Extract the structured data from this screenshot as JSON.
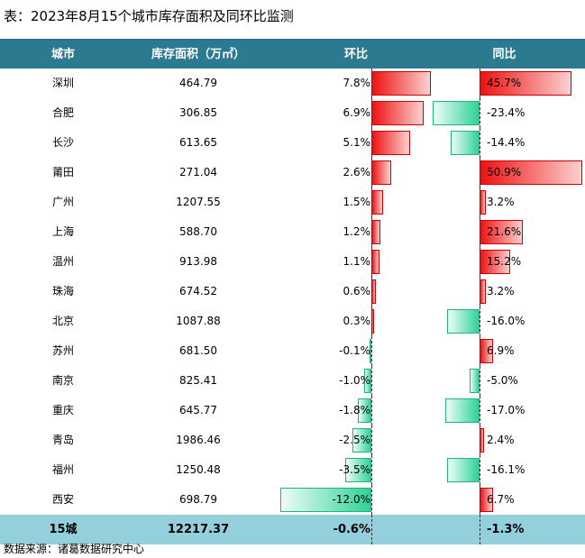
{
  "title": "表：2023年8月15个城市库存面积及同环比监测",
  "source": "数据来源：诸葛数据研究中心",
  "header": {
    "city": "城市",
    "inventory": "库存面积（万㎡）",
    "mom": "环比",
    "yoy": "同比"
  },
  "chart_data": {
    "type": "table",
    "columns": [
      "城市",
      "库存面积（万㎡）",
      "环比",
      "同比"
    ],
    "rows": [
      {
        "city": "深圳",
        "inventory": "464.79",
        "mom": 7.8,
        "mom_label": "7.8%",
        "yoy": 45.7,
        "yoy_label": "45.7%"
      },
      {
        "city": "合肥",
        "inventory": "306.85",
        "mom": 6.9,
        "mom_label": "6.9%",
        "yoy": -23.4,
        "yoy_label": "-23.4%"
      },
      {
        "city": "长沙",
        "inventory": "613.65",
        "mom": 5.1,
        "mom_label": "5.1%",
        "yoy": -14.4,
        "yoy_label": "-14.4%"
      },
      {
        "city": "莆田",
        "inventory": "271.04",
        "mom": 2.6,
        "mom_label": "2.6%",
        "yoy": 50.9,
        "yoy_label": "50.9%"
      },
      {
        "city": "广州",
        "inventory": "1207.55",
        "mom": 1.5,
        "mom_label": "1.5%",
        "yoy": 3.2,
        "yoy_label": "3.2%"
      },
      {
        "city": "上海",
        "inventory": "588.70",
        "mom": 1.2,
        "mom_label": "1.2%",
        "yoy": 21.6,
        "yoy_label": "21.6%"
      },
      {
        "city": "温州",
        "inventory": "913.98",
        "mom": 1.1,
        "mom_label": "1.1%",
        "yoy": 15.2,
        "yoy_label": "15.2%"
      },
      {
        "city": "珠海",
        "inventory": "674.52",
        "mom": 0.6,
        "mom_label": "0.6%",
        "yoy": 3.2,
        "yoy_label": "3.2%"
      },
      {
        "city": "北京",
        "inventory": "1087.88",
        "mom": 0.3,
        "mom_label": "0.3%",
        "yoy": -16.0,
        "yoy_label": "-16.0%"
      },
      {
        "city": "苏州",
        "inventory": "681.50",
        "mom": -0.1,
        "mom_label": "-0.1%",
        "yoy": 6.9,
        "yoy_label": "6.9%"
      },
      {
        "city": "南京",
        "inventory": "825.41",
        "mom": -1.0,
        "mom_label": "-1.0%",
        "yoy": -5.0,
        "yoy_label": "-5.0%"
      },
      {
        "city": "重庆",
        "inventory": "645.77",
        "mom": -1.8,
        "mom_label": "-1.8%",
        "yoy": -17.0,
        "yoy_label": "-17.0%"
      },
      {
        "city": "青岛",
        "inventory": "1986.46",
        "mom": -2.5,
        "mom_label": "-2.5%",
        "yoy": 2.4,
        "yoy_label": "2.4%"
      },
      {
        "city": "福州",
        "inventory": "1250.48",
        "mom": -3.5,
        "mom_label": "-3.5%",
        "yoy": -16.1,
        "yoy_label": "-16.1%"
      },
      {
        "city": "西安",
        "inventory": "698.79",
        "mom": -12.0,
        "mom_label": "-12.0%",
        "yoy": 6.7,
        "yoy_label": "6.7%"
      }
    ],
    "total": {
      "city": "15城",
      "inventory": "12217.37",
      "mom": -0.6,
      "mom_label": "-0.6%",
      "yoy": -1.3,
      "yoy_label": "-1.3%"
    },
    "colors": {
      "header_bg": "#2b7a90",
      "total_bg": "#94cfdc",
      "positive_bar": "#ee1111",
      "negative_bar": "#2ed297"
    }
  }
}
